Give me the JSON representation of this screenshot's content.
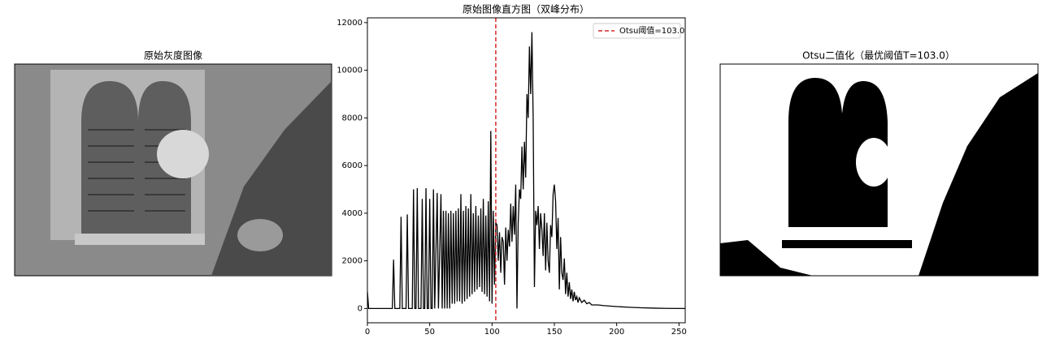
{
  "chart_data": [
    {
      "type": "image",
      "title": "原始灰度图像"
    },
    {
      "type": "line",
      "title": "原始图像直方图（双峰分布）",
      "x": [
        0,
        1,
        20,
        21,
        22,
        26,
        27,
        28,
        31,
        32,
        33,
        36,
        37,
        38,
        39,
        40,
        41,
        43,
        44,
        45,
        46,
        47,
        48,
        49,
        50,
        51,
        52,
        53,
        54,
        56,
        57,
        59,
        60,
        61,
        62,
        63,
        64,
        65,
        66,
        67,
        68,
        69,
        70,
        71,
        72,
        73,
        74,
        75,
        76,
        77,
        78,
        79,
        80,
        81,
        82,
        83,
        84,
        85,
        86,
        87,
        88,
        89,
        90,
        91,
        92,
        93,
        94,
        95,
        96,
        97,
        98,
        99,
        100,
        101,
        102,
        103,
        104,
        105,
        106,
        107,
        108,
        109,
        110,
        111,
        112,
        113,
        114,
        115,
        116,
        117,
        118,
        119,
        120,
        121,
        122,
        123,
        124,
        125,
        126,
        127,
        128,
        129,
        130,
        131,
        132,
        133,
        134,
        135,
        136,
        137,
        138,
        139,
        140,
        141,
        142,
        143,
        144,
        145,
        146,
        147,
        148,
        149,
        150,
        151,
        152,
        153,
        154,
        155,
        156,
        157,
        158,
        159,
        160,
        161,
        162,
        163,
        164,
        165,
        166,
        167,
        168,
        169,
        170,
        172,
        174,
        176,
        178,
        180,
        185,
        190,
        200,
        210,
        220,
        230,
        240,
        255
      ],
      "values": [
        700,
        0,
        0,
        2050,
        0,
        0,
        3850,
        0,
        0,
        3950,
        0,
        0,
        5000,
        0,
        0,
        5050,
        0,
        0,
        4600,
        0,
        0,
        5050,
        0,
        0,
        4600,
        0,
        0,
        5000,
        0,
        4850,
        0,
        4800,
        0,
        4100,
        0,
        4100,
        0,
        4000,
        0,
        4100,
        200,
        4000,
        200,
        4100,
        300,
        4200,
        300,
        4800,
        200,
        4100,
        300,
        4300,
        400,
        4200,
        500,
        4800,
        600,
        4000,
        700,
        4300,
        800,
        3900,
        900,
        4200,
        700,
        4600,
        600,
        3900,
        500,
        4500,
        300,
        7450,
        200,
        4100,
        1000,
        3600,
        3500,
        2000,
        3200,
        1500,
        3000,
        2800,
        1000,
        3400,
        2000,
        3300,
        2600,
        4400,
        2800,
        4300,
        3100,
        5200,
        0,
        3600,
        5000,
        4600,
        6800,
        5000,
        7000,
        5500,
        9000,
        8000,
        11000,
        9000,
        11600,
        8000,
        900,
        4100,
        3500,
        4300,
        2500,
        4000,
        3300,
        2200,
        4000,
        1600,
        3600,
        2000,
        1500,
        3500,
        3000,
        4800,
        5200,
        4500,
        2500,
        3800,
        800,
        3000,
        1500,
        1200,
        2100,
        600,
        1500,
        500,
        1100,
        400,
        800,
        300,
        700,
        350,
        500,
        250,
        450,
        250,
        350,
        200,
        250,
        150,
        150,
        120,
        80,
        50,
        30,
        15,
        5,
        0
      ],
      "color": "#000000",
      "vline": {
        "name": "Otsu阈值=103.0",
        "value": 103,
        "color": "#d62728"
      },
      "legend": "upper right",
      "xlim": [
        0,
        255
      ],
      "xticks": [
        0,
        50,
        100,
        150,
        200,
        250
      ],
      "ylim": [
        -600,
        12200
      ],
      "yticks": [
        0,
        2000,
        4000,
        6000,
        8000,
        10000,
        12000
      ]
    },
    {
      "type": "image",
      "title": "Otsu二值化（最优阈值T=103.0）"
    }
  ]
}
